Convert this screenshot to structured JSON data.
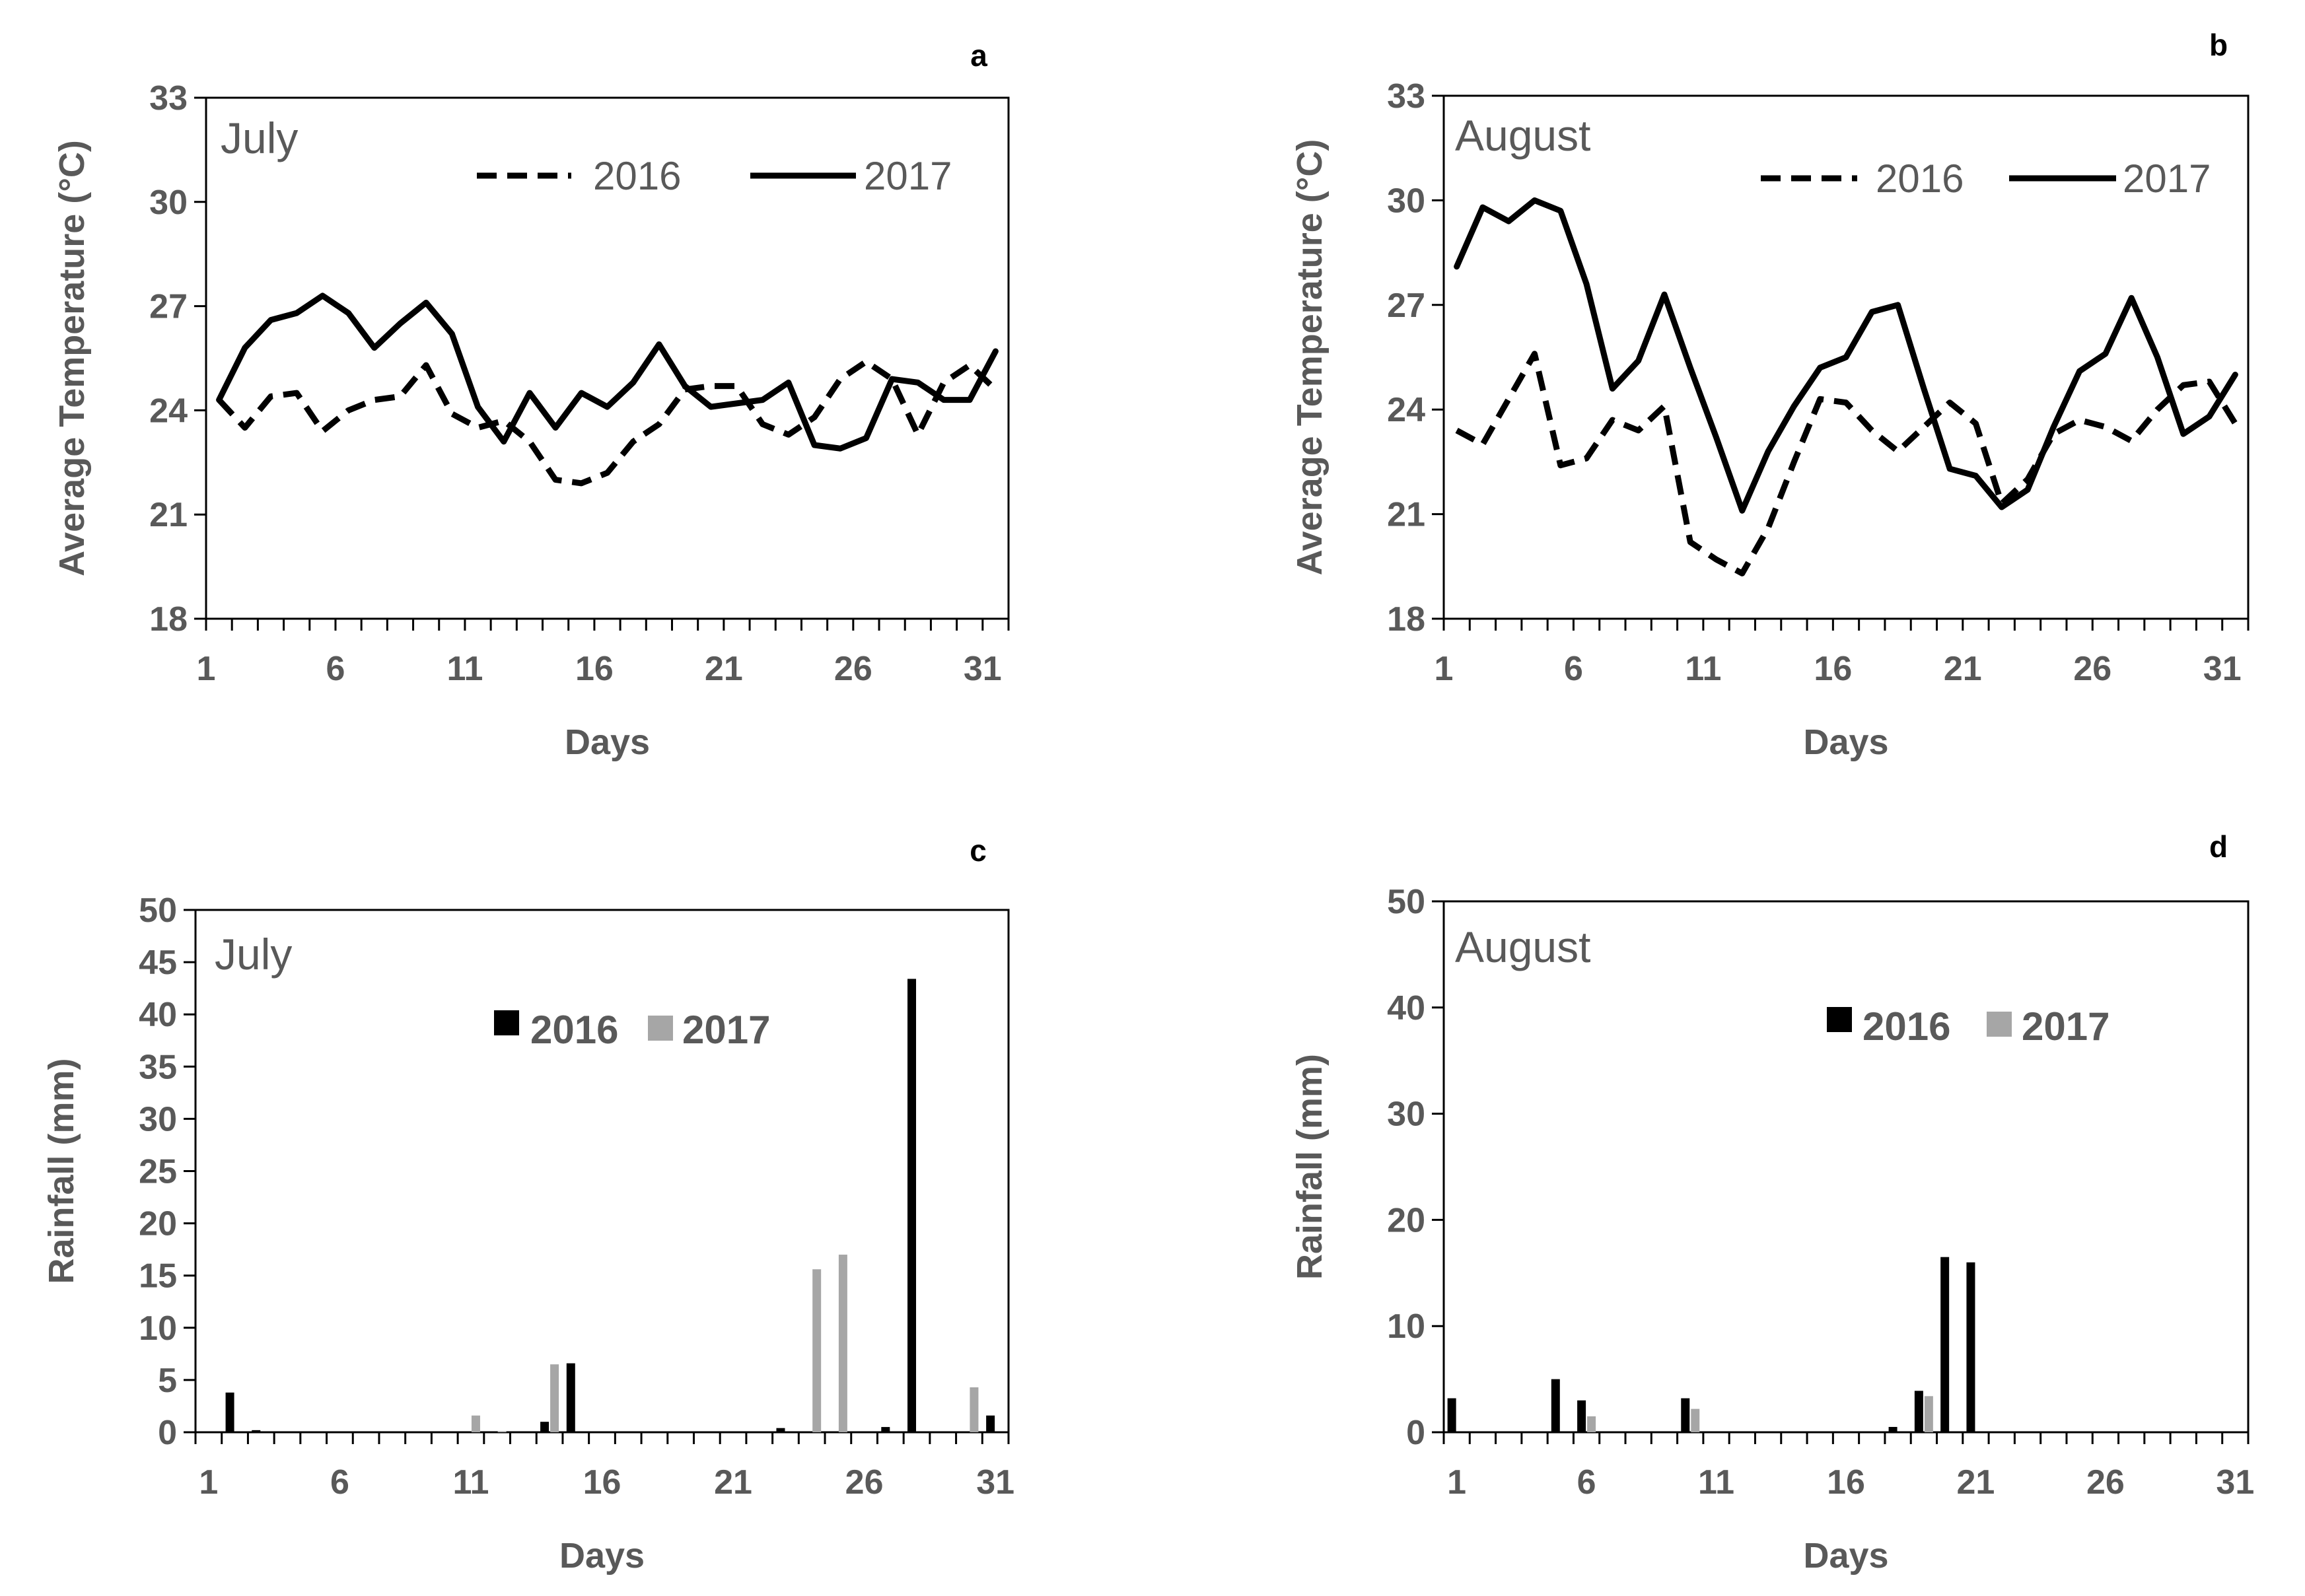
{
  "chart_data": [
    {
      "panel": "a",
      "type": "line",
      "month_label": "July",
      "xlabel": "Days",
      "ylabel": "Average  Temperature  (°C)",
      "ylim": [
        18,
        33
      ],
      "yticks": [
        "18",
        "21",
        "24",
        "27",
        "30",
        "33"
      ],
      "xticks": [
        "1",
        "6",
        "11",
        "16",
        "21",
        "26",
        "31"
      ],
      "x": [
        1,
        2,
        3,
        4,
        5,
        6,
        7,
        8,
        9,
        10,
        11,
        12,
        13,
        14,
        15,
        16,
        17,
        18,
        19,
        20,
        21,
        22,
        23,
        24,
        25,
        26,
        27,
        28,
        29,
        30,
        31
      ],
      "series": [
        {
          "name": "2016",
          "style": "dashed",
          "color": "#000000",
          "values": [
            24.3,
            23.5,
            24.4,
            24.5,
            23.4,
            24.0,
            24.3,
            24.4,
            25.3,
            23.9,
            23.5,
            23.7,
            23.1,
            22.0,
            21.9,
            22.2,
            23.1,
            23.6,
            24.6,
            24.7,
            24.7,
            23.6,
            23.3,
            23.8,
            24.9,
            25.4,
            24.9,
            23.3,
            24.8,
            25.3,
            24.6
          ]
        },
        {
          "name": "2017",
          "style": "solid",
          "color": "#000000",
          "values": [
            24.3,
            25.8,
            26.6,
            26.8,
            27.3,
            26.8,
            25.8,
            26.5,
            27.1,
            26.2,
            24.1,
            23.1,
            24.5,
            23.5,
            24.5,
            24.1,
            24.8,
            25.9,
            24.7,
            24.1,
            24.2,
            24.3,
            24.8,
            23.0,
            22.9,
            23.2,
            24.9,
            24.8,
            24.3,
            24.3,
            25.7
          ]
        }
      ]
    },
    {
      "panel": "b",
      "type": "line",
      "month_label": "August",
      "xlabel": "Days",
      "ylabel": "Average Temperature (°C)",
      "ylim": [
        18,
        33
      ],
      "yticks": [
        "18",
        "21",
        "24",
        "27",
        "30",
        "33"
      ],
      "xticks": [
        "1",
        "6",
        "11",
        "16",
        "21",
        "26",
        "31"
      ],
      "x": [
        1,
        2,
        3,
        4,
        5,
        6,
        7,
        8,
        9,
        10,
        11,
        12,
        13,
        14,
        15,
        16,
        17,
        18,
        19,
        20,
        21,
        22,
        23,
        24,
        25,
        26,
        27,
        28,
        29,
        30,
        31
      ],
      "series": [
        {
          "name": "2016",
          "style": "dashed",
          "color": "#000000",
          "values": [
            23.4,
            23.0,
            24.3,
            25.6,
            22.4,
            22.6,
            23.7,
            23.4,
            24.1,
            20.2,
            19.7,
            19.3,
            20.6,
            22.5,
            24.3,
            24.2,
            23.4,
            22.8,
            23.5,
            24.2,
            23.6,
            21.3,
            22.0,
            23.3,
            23.7,
            23.5,
            23.1,
            24.0,
            24.7,
            24.8,
            23.6
          ]
        },
        {
          "name": "2017",
          "style": "solid",
          "color": "#000000",
          "values": [
            28.1,
            29.8,
            29.4,
            30.0,
            29.7,
            27.6,
            24.6,
            25.4,
            27.3,
            25.2,
            23.2,
            21.1,
            22.8,
            24.1,
            25.2,
            25.5,
            26.8,
            27.0,
            24.6,
            22.3,
            22.1,
            21.2,
            21.7,
            23.5,
            25.1,
            25.6,
            27.2,
            25.5,
            23.3,
            23.8,
            25.0
          ]
        }
      ]
    },
    {
      "panel": "c",
      "type": "bar",
      "month_label": "July",
      "xlabel": "Days",
      "ylabel": "Rainfall (mm)",
      "ylim": [
        0,
        50
      ],
      "yticks": [
        "0",
        "5",
        "10",
        "15",
        "20",
        "25",
        "30",
        "35",
        "40",
        "45",
        "50"
      ],
      "xticks": [
        "1",
        "6",
        "11",
        "16",
        "21",
        "26",
        "31"
      ],
      "categories": [
        1,
        2,
        3,
        4,
        5,
        6,
        7,
        8,
        9,
        10,
        11,
        12,
        13,
        14,
        15,
        16,
        17,
        18,
        19,
        20,
        21,
        22,
        23,
        24,
        25,
        26,
        27,
        28,
        29,
        30,
        31
      ],
      "series": [
        {
          "name": "2016",
          "color": "#000000",
          "values": [
            0,
            3.8,
            0.2,
            0,
            0,
            0,
            0,
            0,
            0,
            0,
            0,
            0,
            0,
            1.0,
            6.6,
            0,
            0,
            0,
            0,
            0,
            0,
            0,
            0.4,
            0,
            0,
            0,
            0.5,
            43.4,
            0,
            0,
            1.6
          ]
        },
        {
          "name": "2017",
          "color": "#a6a6a6",
          "values": [
            0,
            0,
            0,
            0,
            0,
            0,
            0,
            0,
            0,
            0,
            1.6,
            0.1,
            0,
            6.5,
            0,
            0,
            0,
            0,
            0,
            0,
            0,
            0,
            0,
            15.6,
            17.0,
            0,
            0,
            0,
            0,
            4.3,
            0
          ]
        }
      ]
    },
    {
      "panel": "d",
      "type": "bar",
      "month_label": "August",
      "xlabel": "Days",
      "ylabel": "Rainfall (mm)",
      "ylim": [
        0,
        50
      ],
      "yticks": [
        "0",
        "10",
        "20",
        "30",
        "40",
        "50"
      ],
      "xticks": [
        "1",
        "6",
        "11",
        "16",
        "21",
        "26",
        "31"
      ],
      "categories": [
        1,
        2,
        3,
        4,
        5,
        6,
        7,
        8,
        9,
        10,
        11,
        12,
        13,
        14,
        15,
        16,
        17,
        18,
        19,
        20,
        21,
        22,
        23,
        24,
        25,
        26,
        27,
        28,
        29,
        30,
        31
      ],
      "series": [
        {
          "name": "2016",
          "color": "#000000",
          "values": [
            3.2,
            0,
            0,
            0,
            5.0,
            3.0,
            0,
            0,
            0,
            3.2,
            0,
            0,
            0,
            0,
            0,
            0,
            0,
            0.5,
            3.9,
            16.5,
            16.0,
            0,
            0,
            0,
            0,
            0,
            0,
            0,
            0,
            0,
            0
          ]
        },
        {
          "name": "2017",
          "color": "#a6a6a6",
          "values": [
            0,
            0,
            0,
            0,
            0,
            1.5,
            0,
            0,
            0,
            2.2,
            0,
            0,
            0,
            0,
            0,
            0,
            0,
            0,
            3.4,
            0,
            0,
            0,
            0,
            0,
            0,
            0,
            0,
            0,
            0,
            0,
            0
          ]
        }
      ]
    }
  ]
}
